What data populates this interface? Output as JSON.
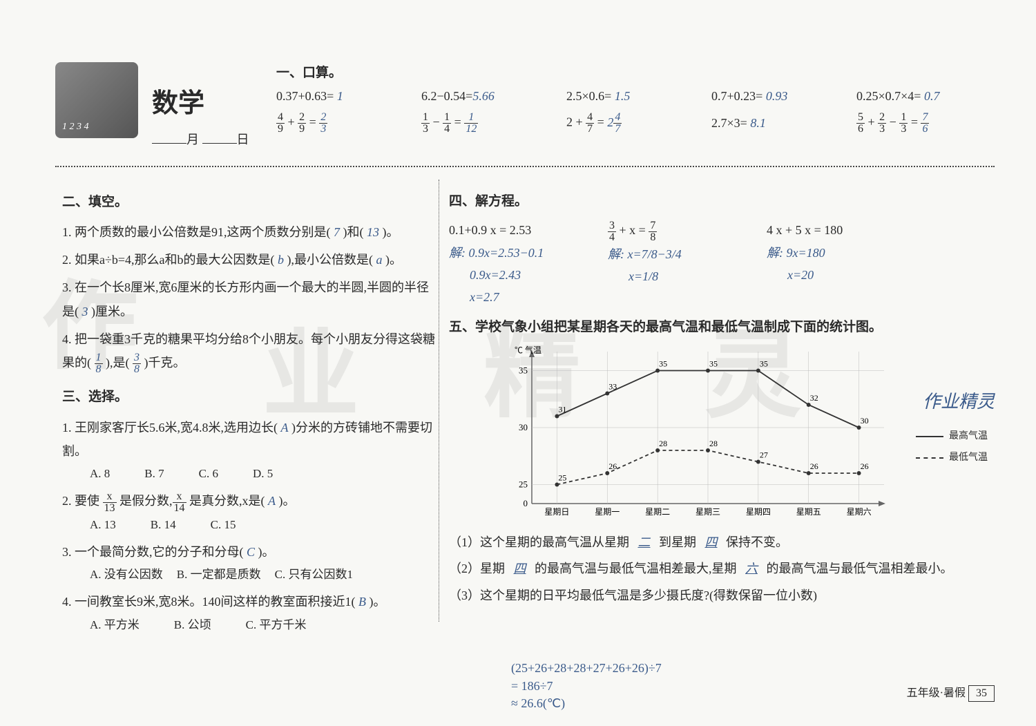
{
  "header": {
    "subject": "数学",
    "month_label": "月",
    "day_label": "日"
  },
  "section1": {
    "title": "一、口算。",
    "row1": [
      {
        "expr": "0.37+0.63=",
        "ans": "1"
      },
      {
        "expr": "6.2−0.54=",
        "ans": "5.66"
      },
      {
        "expr": "2.5×0.6=",
        "ans": "1.5"
      },
      {
        "expr": "0.7+0.23=",
        "ans": "0.93"
      },
      {
        "expr": "0.25×0.7×4=",
        "ans": "0.7"
      }
    ],
    "row2": [
      {
        "expr_html": "4/9 + 2/9 =",
        "ans_html": "2/3"
      },
      {
        "expr_html": "1/3 − 1/4 =",
        "ans_html": "1/12"
      },
      {
        "expr_html": "2 + 4/7 =",
        "ans_html": "2 4/7"
      },
      {
        "expr_html": "2.7×3=",
        "ans_html": "8.1"
      },
      {
        "expr_html": "5/6 + 2/3 − 1/3 =",
        "ans_html": "7/6"
      }
    ]
  },
  "section2": {
    "title": "二、填空。",
    "q1": {
      "text": "1. 两个质数的最小公倍数是91,这两个质数分别是(",
      "a1": "7",
      "mid": ")和(",
      "a2": "13",
      "end": ")。"
    },
    "q2": {
      "text": "2. 如果a÷b=4,那么a和b的最大公因数是(",
      "a1": "b",
      "mid": "),最小公倍数是(",
      "a2": "a",
      "end": ")。"
    },
    "q3": {
      "text": "3. 在一个长8厘米,宽6厘米的长方形内画一个最大的半圆,半圆的半径是(",
      "a": "3",
      "end": ")厘米。"
    },
    "q4": {
      "text": "4. 把一袋重3千克的糖果平均分给8个小朋友。每个小朋友分得这袋糖果的(",
      "a1_num": "1",
      "a1_den": "8",
      "mid": "),是(",
      "a2_num": "3",
      "a2_den": "8",
      "end": ")千克。"
    }
  },
  "section3": {
    "title": "三、选择。",
    "q1": {
      "text": "1. 王刚家客厅长5.6米,宽4.8米,选用边长(",
      "ans": "A",
      "after": ")分米的方砖铺地不需要切割。",
      "options": [
        "A. 8",
        "B. 7",
        "C. 6",
        "D. 5"
      ]
    },
    "q2": {
      "pre": "2. 要使 ",
      "x1_num": "x",
      "x1_den": "13",
      "mid1": " 是假分数,",
      "x2_num": "x",
      "x2_den": "14",
      "mid2": " 是真分数,x是(",
      "ans": "A",
      "after": ")。",
      "options": [
        "A. 13",
        "B. 14",
        "C. 15"
      ]
    },
    "q3": {
      "text": "3. 一个最简分数,它的分子和分母(",
      "ans": "C",
      "after": ")。",
      "options": [
        "A. 没有公因数",
        "B. 一定都是质数",
        "C. 只有公因数1"
      ]
    },
    "q4": {
      "text": "4. 一间教室长9米,宽8米。140间这样的教室面积接近1(",
      "ans": "B",
      "after": ")。",
      "options": [
        "A. 平方米",
        "B. 公顷",
        "C. 平方千米"
      ]
    }
  },
  "section4": {
    "title": "四、解方程。",
    "eq1": {
      "prob": "0.1+0.9 x = 2.53",
      "work": [
        "解: 0.9x=2.53−0.1",
        "0.9x=2.43",
        "x=2.7"
      ]
    },
    "eq2": {
      "prob_num1": "3",
      "prob_den1": "4",
      "prob_mid": " + x = ",
      "prob_num2": "7",
      "prob_den2": "8",
      "work": [
        "解: x=7/8−3/4",
        "x=1/8"
      ]
    },
    "eq3": {
      "prob": "4 x + 5 x = 180",
      "work": [
        "解: 9x=180",
        "x=20"
      ]
    }
  },
  "section5": {
    "title": "五、学校气象小组把某星期各天的最高气温和最低气温制成下面的统计图。",
    "y_axis_label": "℃ 气温",
    "y_ticks": [
      0,
      25,
      30,
      35
    ],
    "x_labels": [
      "星期日",
      "星期一",
      "星期二",
      "星期三",
      "星期四",
      "星期五",
      "星期六"
    ],
    "series_high": {
      "name": "最高气温",
      "color": "#333333",
      "style": "solid",
      "data": [
        31,
        33,
        35,
        35,
        35,
        32,
        30
      ],
      "labels": [
        "31",
        "33",
        "35",
        "35",
        "35",
        "32",
        "30"
      ]
    },
    "series_low": {
      "name": "最低气温",
      "color": "#333333",
      "style": "dash",
      "data": [
        25,
        26,
        28,
        28,
        27,
        26,
        26
      ],
      "labels": [
        "25",
        "26",
        "28",
        "28",
        "27",
        "26",
        "26"
      ]
    },
    "chart_bg": "#f8f8f5",
    "grid_color": "#666666",
    "point_values_fontsize": 12,
    "annotation_right": "作业精灵",
    "q1": {
      "text": "（1）这个星期的最高气温从星期",
      "a1": "二",
      "mid": "到星期",
      "a2": "四",
      "end": "保持不变。"
    },
    "q2": {
      "text": "（2）星期",
      "a1": "四",
      "mid": "的最高气温与最低气温相差最大,星期",
      "a2": "六",
      "end": "的最高气温与最低气温相差最小。"
    },
    "q3": {
      "text": "（3）这个星期的日平均最低气温是多少摄氏度?(得数保留一位小数)"
    },
    "q3_work": [
      "(25+26+28+28+27+26+26)÷7",
      "= 186÷7",
      "≈ 26.6(℃)"
    ]
  },
  "footer": {
    "grade": "五年级·暑假",
    "page": "35"
  },
  "watermark": {
    "chars": [
      "作",
      "业",
      "精",
      "灵"
    ]
  }
}
